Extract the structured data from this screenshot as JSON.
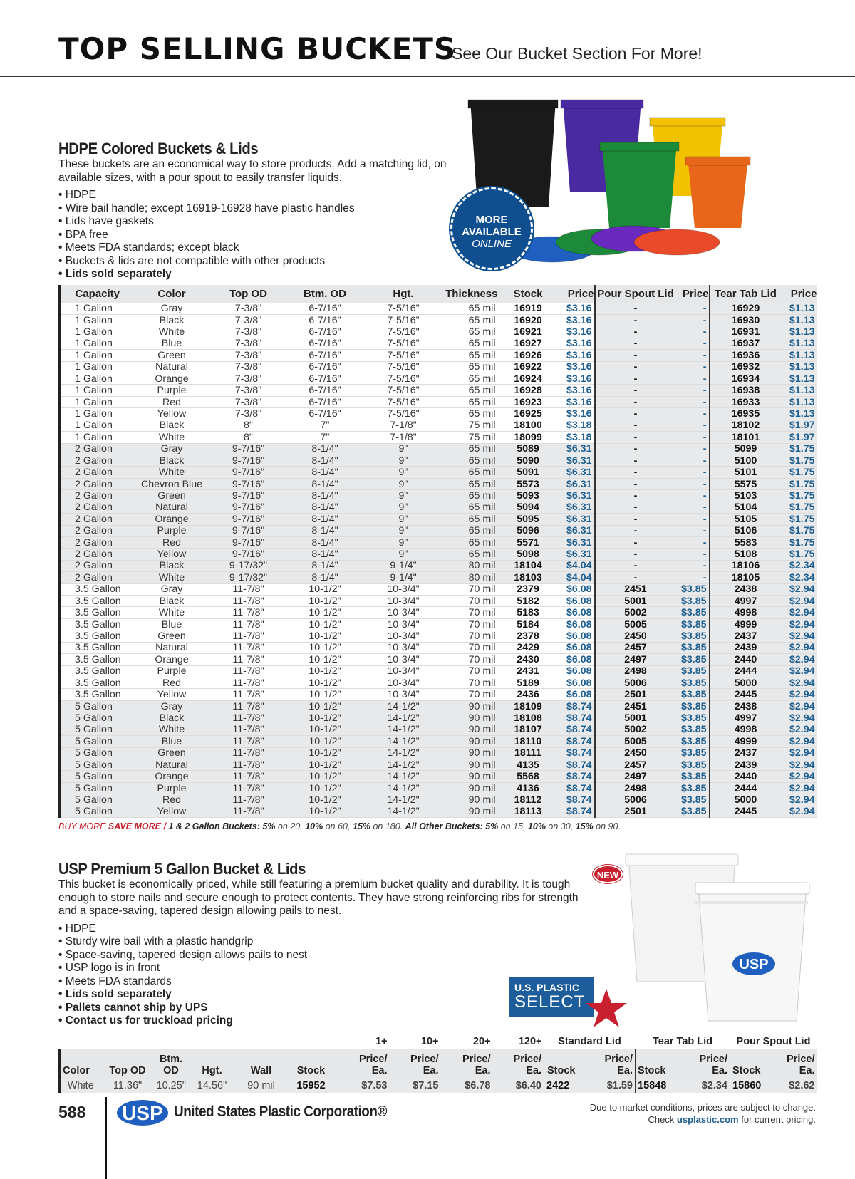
{
  "header": {
    "title": "TOP SELLING BUCKETS",
    "subtitle": "See Our Bucket Section For More!"
  },
  "section1": {
    "heading": "HDPE Colored Buckets & Lids",
    "description": "These buckets are an economical way to store products. Add a matching lid, on available sizes, with a pour spout to easily transfer liquids.",
    "bullets": [
      "HDPE",
      "Wire bail handle; except 16919-16928 have plastic handles",
      "Lids have gaskets",
      "BPA free",
      "Meets FDA standards; except black",
      "Buckets & lids are not compatible with other products",
      "Lids sold separately"
    ],
    "badge": {
      "line1": "MORE",
      "line2": "AVAILABLE",
      "line3": "ONLINE"
    },
    "bucket_colors": [
      "#1a1a1a",
      "#4a2aa0",
      "#f2c200",
      "#1d8a3a",
      "#e8661a",
      "#1f5fc0"
    ]
  },
  "table1": {
    "columns": [
      "Capacity",
      "Color",
      "Top OD",
      "Btm. OD",
      "Hgt.",
      "Thickness",
      "Stock",
      "Price",
      "Pour Spout Lid",
      "Price",
      "Tear Tab Lid",
      "Price"
    ],
    "rows": [
      [
        "1 Gallon",
        "Gray",
        "7-3/8\"",
        "6-7/16\"",
        "7-5/16\"",
        "65 mil",
        "16919",
        "$3.16",
        "-",
        "-",
        "16929",
        "$1.13"
      ],
      [
        "1 Gallon",
        "Black",
        "7-3/8\"",
        "6-7/16\"",
        "7-5/16\"",
        "65 mil",
        "16920",
        "$3.16",
        "-",
        "-",
        "16930",
        "$1.13"
      ],
      [
        "1 Gallon",
        "White",
        "7-3/8\"",
        "6-7/16\"",
        "7-5/16\"",
        "65 mil",
        "16921",
        "$3.16",
        "-",
        "-",
        "16931",
        "$1.13"
      ],
      [
        "1 Gallon",
        "Blue",
        "7-3/8\"",
        "6-7/16\"",
        "7-5/16\"",
        "65 mil",
        "16927",
        "$3.16",
        "-",
        "-",
        "16937",
        "$1.13"
      ],
      [
        "1 Gallon",
        "Green",
        "7-3/8\"",
        "6-7/16\"",
        "7-5/16\"",
        "65 mil",
        "16926",
        "$3.16",
        "-",
        "-",
        "16936",
        "$1.13"
      ],
      [
        "1 Gallon",
        "Natural",
        "7-3/8\"",
        "6-7/16\"",
        "7-5/16\"",
        "65 mil",
        "16922",
        "$3.16",
        "-",
        "-",
        "16932",
        "$1.13"
      ],
      [
        "1 Gallon",
        "Orange",
        "7-3/8\"",
        "6-7/16\"",
        "7-5/16\"",
        "65 mil",
        "16924",
        "$3.16",
        "-",
        "-",
        "16934",
        "$1.13"
      ],
      [
        "1 Gallon",
        "Purple",
        "7-3/8\"",
        "6-7/16\"",
        "7-5/16\"",
        "65 mil",
        "16928",
        "$3.16",
        "-",
        "-",
        "16938",
        "$1.13"
      ],
      [
        "1 Gallon",
        "Red",
        "7-3/8\"",
        "6-7/16\"",
        "7-5/16\"",
        "65 mil",
        "16923",
        "$3.16",
        "-",
        "-",
        "16933",
        "$1.13"
      ],
      [
        "1 Gallon",
        "Yellow",
        "7-3/8\"",
        "6-7/16\"",
        "7-5/16\"",
        "65 mil",
        "16925",
        "$3.16",
        "-",
        "-",
        "16935",
        "$1.13"
      ],
      [
        "1 Gallon",
        "Black",
        "8\"",
        "7\"",
        "7-1/8\"",
        "75 mil",
        "18100",
        "$3.18",
        "-",
        "-",
        "18102",
        "$1.97"
      ],
      [
        "1 Gallon",
        "White",
        "8\"",
        "7\"",
        "7-1/8\"",
        "75 mil",
        "18099",
        "$3.18",
        "-",
        "-",
        "18101",
        "$1.97"
      ],
      [
        "2 Gallon",
        "Gray",
        "9-7/16\"",
        "8-1/4\"",
        "9\"",
        "65 mil",
        "5089",
        "$6.31",
        "-",
        "-",
        "5099",
        "$1.75"
      ],
      [
        "2 Gallon",
        "Black",
        "9-7/16\"",
        "8-1/4\"",
        "9\"",
        "65 mil",
        "5090",
        "$6.31",
        "-",
        "-",
        "5100",
        "$1.75"
      ],
      [
        "2 Gallon",
        "White",
        "9-7/16\"",
        "8-1/4\"",
        "9\"",
        "65 mil",
        "5091",
        "$6.31",
        "-",
        "-",
        "5101",
        "$1.75"
      ],
      [
        "2 Gallon",
        "Chevron Blue",
        "9-7/16\"",
        "8-1/4\"",
        "9\"",
        "65 mil",
        "5573",
        "$6.31",
        "-",
        "-",
        "5575",
        "$1.75"
      ],
      [
        "2 Gallon",
        "Green",
        "9-7/16\"",
        "8-1/4\"",
        "9\"",
        "65 mil",
        "5093",
        "$6.31",
        "-",
        "-",
        "5103",
        "$1.75"
      ],
      [
        "2 Gallon",
        "Natural",
        "9-7/16\"",
        "8-1/4\"",
        "9\"",
        "65 mil",
        "5094",
        "$6.31",
        "-",
        "-",
        "5104",
        "$1.75"
      ],
      [
        "2 Gallon",
        "Orange",
        "9-7/16\"",
        "8-1/4\"",
        "9\"",
        "65 mil",
        "5095",
        "$6.31",
        "-",
        "-",
        "5105",
        "$1.75"
      ],
      [
        "2 Gallon",
        "Purple",
        "9-7/16\"",
        "8-1/4\"",
        "9\"",
        "65 mil",
        "5096",
        "$6.31",
        "-",
        "-",
        "5106",
        "$1.75"
      ],
      [
        "2 Gallon",
        "Red",
        "9-7/16\"",
        "8-1/4\"",
        "9\"",
        "65 mil",
        "5571",
        "$6.31",
        "-",
        "-",
        "5583",
        "$1.75"
      ],
      [
        "2 Gallon",
        "Yellow",
        "9-7/16\"",
        "8-1/4\"",
        "9\"",
        "65 mil",
        "5098",
        "$6.31",
        "-",
        "-",
        "5108",
        "$1.75"
      ],
      [
        "2 Gallon",
        "Black",
        "9-17/32\"",
        "8-1/4\"",
        "9-1/4\"",
        "80 mil",
        "18104",
        "$4.04",
        "-",
        "-",
        "18106",
        "$2.34"
      ],
      [
        "2 Gallon",
        "White",
        "9-17/32\"",
        "8-1/4\"",
        "9-1/4\"",
        "80 mil",
        "18103",
        "$4.04",
        "-",
        "-",
        "18105",
        "$2.34"
      ],
      [
        "3.5 Gallon",
        "Gray",
        "11-7/8\"",
        "10-1/2\"",
        "10-3/4\"",
        "70 mil",
        "2379",
        "$6.08",
        "2451",
        "$3.85",
        "2438",
        "$2.94"
      ],
      [
        "3.5 Gallon",
        "Black",
        "11-7/8\"",
        "10-1/2\"",
        "10-3/4\"",
        "70 mil",
        "5182",
        "$6.08",
        "5001",
        "$3.85",
        "4997",
        "$2.94"
      ],
      [
        "3.5 Gallon",
        "White",
        "11-7/8\"",
        "10-1/2\"",
        "10-3/4\"",
        "70 mil",
        "5183",
        "$6.08",
        "5002",
        "$3.85",
        "4998",
        "$2.94"
      ],
      [
        "3.5 Gallon",
        "Blue",
        "11-7/8\"",
        "10-1/2\"",
        "10-3/4\"",
        "70 mil",
        "5184",
        "$6.08",
        "5005",
        "$3.85",
        "4999",
        "$2.94"
      ],
      [
        "3.5 Gallon",
        "Green",
        "11-7/8\"",
        "10-1/2\"",
        "10-3/4\"",
        "70 mil",
        "2378",
        "$6.08",
        "2450",
        "$3.85",
        "2437",
        "$2.94"
      ],
      [
        "3.5 Gallon",
        "Natural",
        "11-7/8\"",
        "10-1/2\"",
        "10-3/4\"",
        "70 mil",
        "2429",
        "$6.08",
        "2457",
        "$3.85",
        "2439",
        "$2.94"
      ],
      [
        "3.5 Gallon",
        "Orange",
        "11-7/8\"",
        "10-1/2\"",
        "10-3/4\"",
        "70 mil",
        "2430",
        "$6.08",
        "2497",
        "$3.85",
        "2440",
        "$2.94"
      ],
      [
        "3.5 Gallon",
        "Purple",
        "11-7/8\"",
        "10-1/2\"",
        "10-3/4\"",
        "70 mil",
        "2431",
        "$6.08",
        "2498",
        "$3.85",
        "2444",
        "$2.94"
      ],
      [
        "3.5 Gallon",
        "Red",
        "11-7/8\"",
        "10-1/2\"",
        "10-3/4\"",
        "70 mil",
        "5189",
        "$6.08",
        "5006",
        "$3.85",
        "5000",
        "$2.94"
      ],
      [
        "3.5 Gallon",
        "Yellow",
        "11-7/8\"",
        "10-1/2\"",
        "10-3/4\"",
        "70 mil",
        "2436",
        "$6.08",
        "2501",
        "$3.85",
        "2445",
        "$2.94"
      ],
      [
        "5 Gallon",
        "Gray",
        "11-7/8\"",
        "10-1/2\"",
        "14-1/2\"",
        "90 mil",
        "18109",
        "$8.74",
        "2451",
        "$3.85",
        "2438",
        "$2.94"
      ],
      [
        "5 Gallon",
        "Black",
        "11-7/8\"",
        "10-1/2\"",
        "14-1/2\"",
        "90 mil",
        "18108",
        "$8.74",
        "5001",
        "$3.85",
        "4997",
        "$2.94"
      ],
      [
        "5 Gallon",
        "White",
        "11-7/8\"",
        "10-1/2\"",
        "14-1/2\"",
        "90 mil",
        "18107",
        "$8.74",
        "5002",
        "$3.85",
        "4998",
        "$2.94"
      ],
      [
        "5 Gallon",
        "Blue",
        "11-7/8\"",
        "10-1/2\"",
        "14-1/2\"",
        "90 mil",
        "18110",
        "$8.74",
        "5005",
        "$3.85",
        "4999",
        "$2.94"
      ],
      [
        "5 Gallon",
        "Green",
        "11-7/8\"",
        "10-1/2\"",
        "14-1/2\"",
        "90 mil",
        "18111",
        "$8.74",
        "2450",
        "$3.85",
        "2437",
        "$2.94"
      ],
      [
        "5 Gallon",
        "Natural",
        "11-7/8\"",
        "10-1/2\"",
        "14-1/2\"",
        "90 mil",
        "4135",
        "$8.74",
        "2457",
        "$3.85",
        "2439",
        "$2.94"
      ],
      [
        "5 Gallon",
        "Orange",
        "11-7/8\"",
        "10-1/2\"",
        "14-1/2\"",
        "90 mil",
        "5568",
        "$8.74",
        "2497",
        "$3.85",
        "2440",
        "$2.94"
      ],
      [
        "5 Gallon",
        "Purple",
        "11-7/8\"",
        "10-1/2\"",
        "14-1/2\"",
        "90 mil",
        "4136",
        "$8.74",
        "2498",
        "$3.85",
        "2444",
        "$2.94"
      ],
      [
        "5 Gallon",
        "Red",
        "11-7/8\"",
        "10-1/2\"",
        "14-1/2\"",
        "90 mil",
        "18112",
        "$8.74",
        "5006",
        "$3.85",
        "5000",
        "$2.94"
      ],
      [
        "5 Gallon",
        "Yellow",
        "11-7/8\"",
        "10-1/2\"",
        "14-1/2\"",
        "90 mil",
        "18113",
        "$8.74",
        "2501",
        "$3.85",
        "2445",
        "$2.94"
      ]
    ]
  },
  "footnote": {
    "p1": "BUY MORE ",
    "p2": "SAVE MORE / ",
    "p3": "1 & 2 Gallon Buckets: 5%",
    "p4": " on 20, ",
    "p5": "10%",
    "p6": " on 60, ",
    "p7": "15%",
    "p8": " on 180. ",
    "p9": "All Other Buckets: 5%",
    "p10": " on 15, ",
    "p11": "10%",
    "p12": " on 30, ",
    "p13": "15%",
    "p14": " on 90."
  },
  "section2": {
    "heading": "USP Premium 5 Gallon Bucket & Lids",
    "description": "This bucket is economically priced, while still featuring a premium bucket quality and durability. It is tough enough to store nails and secure enough to protect contents. They have strong reinforcing ribs for strength and a space-saving, tapered design allowing pails to nest.",
    "bullets": [
      "HDPE",
      "Sturdy wire bail with a plastic handgrip",
      "Space-saving, tapered design allows pails to nest",
      "USP logo is in front",
      "Meets FDA standards"
    ],
    "bold_bullets": [
      "Lids sold separately",
      "Pallets cannot ship by UPS",
      "Contact us for truckload pricing"
    ],
    "new_badge": "NEW",
    "select_logo": {
      "line1": "U.S. PLASTIC",
      "line2": "SELECT"
    },
    "bucket_logo": "USP"
  },
  "table2": {
    "groups": [
      "1+",
      "10+",
      "20+",
      "120+",
      "Standard Lid",
      "Tear Tab Lid",
      "Pour Spout Lid"
    ],
    "columns": [
      "Color",
      "Top OD",
      "Btm. OD",
      "Hgt.",
      "Wall",
      "Stock",
      "Price/ Ea.",
      "Price/ Ea.",
      "Price/ Ea.",
      "Price/ Ea.",
      "Stock",
      "Price/ Ea.",
      "Stock",
      "Price/ Ea.",
      "Stock",
      "Price/ Ea."
    ],
    "row": [
      "White",
      "11.36\"",
      "10.25\"",
      "14.56\"",
      "90 mil",
      "15952",
      "$7.53",
      "$7.15",
      "$6.78",
      "$6.40",
      "2422",
      "$1.59",
      "15848",
      "$2.34",
      "15860",
      "$2.62"
    ]
  },
  "footer": {
    "page_number": "588",
    "logo": "USP",
    "company": "United States Plastic Corporation®",
    "disclaimer1": "Due to market conditions, prices are subject to change.",
    "disclaimer2a": "Check ",
    "disclaimer2b": "usplastic.com",
    "disclaimer2c": " for current pricing."
  },
  "colors": {
    "price_blue": "#1f5f8f",
    "accent_red": "#c8202e",
    "brand_blue": "#0f4f8f"
  }
}
